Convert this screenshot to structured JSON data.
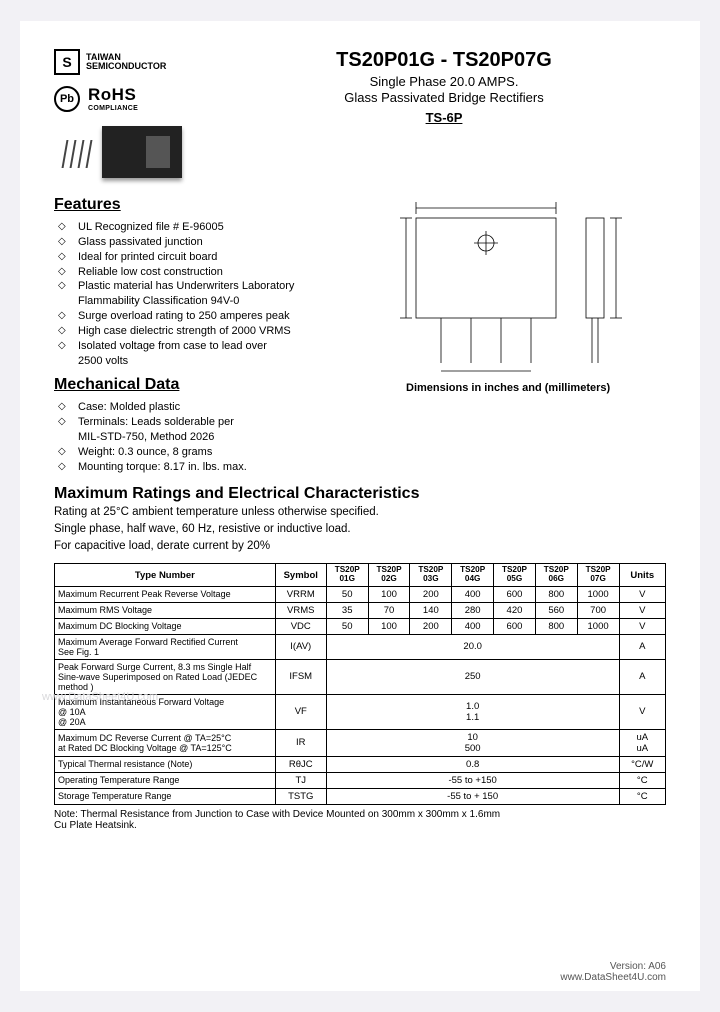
{
  "brand": {
    "logo_label": "S",
    "name_line1": "TAIWAN",
    "name_line2": "SEMICONDUCTOR",
    "pb": "Pb",
    "rohs": "RoHS",
    "rohs_sub": "COMPLIANCE"
  },
  "title": {
    "main": "TS20P01G - TS20P07G",
    "sub1": "Single Phase 20.0 AMPS.",
    "sub2": "Glass Passivated Bridge Rectifiers",
    "pkg": "TS-6P"
  },
  "features": {
    "heading": "Features",
    "items": [
      "UL Recognized file # E-96005",
      "Glass passivated junction",
      "Ideal for printed circuit board",
      "Reliable low cost construction",
      "Plastic material has Underwriters Laboratory",
      "Flammability Classification 94V-0",
      "Surge overload rating to 250 amperes peak",
      "High case dielectric strength of 2000 VRMS",
      "Isolated voltage from case to lead over",
      "2500 volts"
    ],
    "cont_idx": [
      5,
      9
    ]
  },
  "mech": {
    "heading": "Mechanical Data",
    "items": [
      "Case: Molded plastic",
      "Terminals: Leads solderable per",
      "MIL-STD-750, Method 2026",
      "Weight: 0.3 ounce, 8 grams",
      "Mounting torque: 8.17 in. lbs. max."
    ],
    "cont_idx": [
      2
    ]
  },
  "dim_caption": "Dimensions in inches and (millimeters)",
  "ratings_section": {
    "title": "Maximum Ratings and Electrical Characteristics",
    "sub": [
      "Rating at 25°C ambient temperature unless otherwise specified.",
      "Single phase, half wave, 60 Hz, resistive or inductive load.",
      "For capacitive load, derate current by 20%"
    ]
  },
  "table": {
    "col_type": "Type Number",
    "col_sym": "Symbol",
    "parts": [
      "TS20P\n01G",
      "TS20P\n02G",
      "TS20P\n03G",
      "TS20P\n04G",
      "TS20P\n05G",
      "TS20P\n06G",
      "TS20P\n07G"
    ],
    "col_units": "Units",
    "rows": [
      {
        "param": "Maximum Recurrent Peak Reverse Voltage",
        "sym": "VRRM",
        "vals": [
          "50",
          "100",
          "200",
          "400",
          "600",
          "800",
          "1000"
        ],
        "unit": "V"
      },
      {
        "param": "Maximum RMS Voltage",
        "sym": "VRMS",
        "vals": [
          "35",
          "70",
          "140",
          "280",
          "420",
          "560",
          "700"
        ],
        "unit": "V"
      },
      {
        "param": "Maximum DC Blocking Voltage",
        "sym": "VDC",
        "vals": [
          "50",
          "100",
          "200",
          "400",
          "600",
          "800",
          "1000"
        ],
        "unit": "V"
      },
      {
        "param": "Maximum Average Forward Rectified Current\nSee Fig. 1",
        "sym": "I(AV)",
        "span": "20.0",
        "unit": "A"
      },
      {
        "param": "Peak Forward Surge Current, 8.3 ms Single Half Sine-wave Superimposed on Rated Load (JEDEC method )",
        "sym": "IFSM",
        "span": "250",
        "unit": "A"
      },
      {
        "param": "Maximum Instantaneous Forward Voltage\n@ 10A\n@ 20A",
        "sym": "VF",
        "span": "1.0\n1.1",
        "unit": "V"
      },
      {
        "param": "Maximum DC Reverse Current @ TA=25°C\nat Rated DC Blocking Voltage @ TA=125°C",
        "sym": "IR",
        "span": "10\n500",
        "unit": "uA\nuA"
      },
      {
        "param": "Typical Thermal resistance (Note)",
        "sym": "RθJC",
        "span": "0.8",
        "unit": "°C/W"
      },
      {
        "param": "Operating Temperature Range",
        "sym": "TJ",
        "span": "-55 to +150",
        "unit": "°C"
      },
      {
        "param": "Storage Temperature Range",
        "sym": "TSTG",
        "span": "-55 to + 150",
        "unit": "°C"
      }
    ]
  },
  "note": "Note: Thermal Resistance from Junction to Case with Device Mounted on 300mm x 300mm x 1.6mm\n          Cu Plate Heatsink.",
  "footer": {
    "ver": "Version: A06",
    "src": "www.DataSheet4U.com"
  },
  "watermark": "www.DataSheet4U.com",
  "colors": {
    "page_bg": "#f2f1f5",
    "paper": "#ffffff",
    "text": "#000000",
    "watermark": "#d9d9dc"
  }
}
